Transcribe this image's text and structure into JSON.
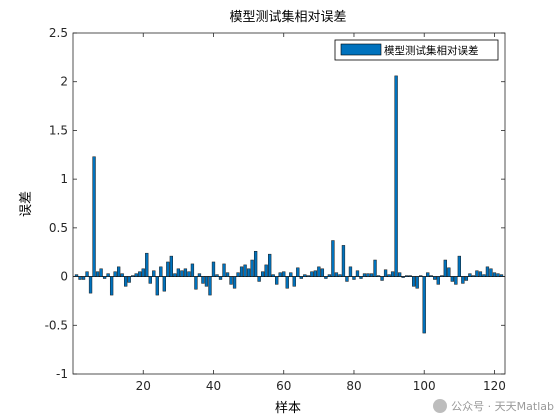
{
  "chart_data": {
    "type": "bar",
    "title": "模型测试集相对误差",
    "xlabel": "样本",
    "ylabel": "误差",
    "legend": {
      "entries": [
        "模型测试集相对误差"
      ],
      "placement": "top-right"
    },
    "xlim": [
      0,
      123
    ],
    "ylim": [
      -1,
      2.5
    ],
    "xticks": [
      20,
      40,
      60,
      80,
      100,
      120
    ],
    "yticks": [
      -1,
      -0.5,
      0,
      0.5,
      1,
      1.5,
      2,
      2.5
    ],
    "ytick_labels": [
      "-1",
      "-0.5",
      "0",
      "0.5",
      "1",
      "1.5",
      "2",
      "2.5"
    ],
    "bar_color": "#0072BD",
    "grid": false,
    "x": [
      1,
      2,
      3,
      4,
      5,
      6,
      7,
      8,
      9,
      10,
      11,
      12,
      13,
      14,
      15,
      16,
      17,
      18,
      19,
      20,
      21,
      22,
      23,
      24,
      25,
      26,
      27,
      28,
      29,
      30,
      31,
      32,
      33,
      34,
      35,
      36,
      37,
      38,
      39,
      40,
      41,
      42,
      43,
      44,
      45,
      46,
      47,
      48,
      49,
      50,
      51,
      52,
      53,
      54,
      55,
      56,
      57,
      58,
      59,
      60,
      61,
      62,
      63,
      64,
      65,
      66,
      67,
      68,
      69,
      70,
      71,
      72,
      73,
      74,
      75,
      76,
      77,
      78,
      79,
      80,
      81,
      82,
      83,
      84,
      85,
      86,
      87,
      88,
      89,
      90,
      91,
      92,
      93,
      94,
      95,
      96,
      97,
      98,
      99,
      100,
      101,
      102,
      103,
      104,
      105,
      106,
      107,
      108,
      109,
      110,
      111,
      112,
      113,
      114,
      115,
      116,
      117,
      118,
      119,
      120,
      121,
      122
    ],
    "values": [
      0.02,
      -0.03,
      -0.03,
      0.05,
      -0.17,
      1.23,
      0.05,
      0.08,
      -0.02,
      0.03,
      -0.19,
      0.05,
      0.1,
      0.03,
      -0.1,
      -0.06,
      0.01,
      0.03,
      0.05,
      0.08,
      0.24,
      -0.07,
      0.06,
      -0.19,
      0.1,
      -0.15,
      0.15,
      0.21,
      0.03,
      0.08,
      0.06,
      0.08,
      0.05,
      0.13,
      -0.13,
      0.03,
      -0.07,
      -0.1,
      -0.19,
      0.15,
      0.02,
      -0.03,
      0.13,
      0.04,
      -0.08,
      -0.12,
      0.04,
      0.1,
      0.12,
      0.08,
      0.17,
      0.26,
      -0.05,
      0.05,
      0.12,
      0.23,
      0.02,
      -0.08,
      0.04,
      0.05,
      -0.12,
      0.04,
      -0.1,
      0.09,
      -0.02,
      0.02,
      0.01,
      0.05,
      0.06,
      0.1,
      0.08,
      -0.02,
      0.02,
      0.37,
      0.04,
      0.02,
      0.32,
      -0.05,
      0.1,
      -0.03,
      0.06,
      -0.02,
      0.03,
      0.03,
      0.03,
      0.17,
      0.01,
      -0.04,
      0.07,
      0.02,
      0.05,
      2.06,
      0.04,
      -0.01,
      0.01,
      0.01,
      -0.1,
      -0.12,
      0.01,
      -0.58,
      0.04,
      0.01,
      -0.03,
      -0.08,
      0.01,
      0.17,
      0.09,
      -0.05,
      -0.08,
      0.21,
      -0.07,
      -0.04,
      0.03,
      0.01,
      0.06,
      0.05,
      0.02,
      0.1,
      0.08,
      0.04,
      0.03,
      0.02
    ]
  },
  "watermark": {
    "text": "公众号 · 天天Matlab",
    "icon": "wechat-icon"
  }
}
